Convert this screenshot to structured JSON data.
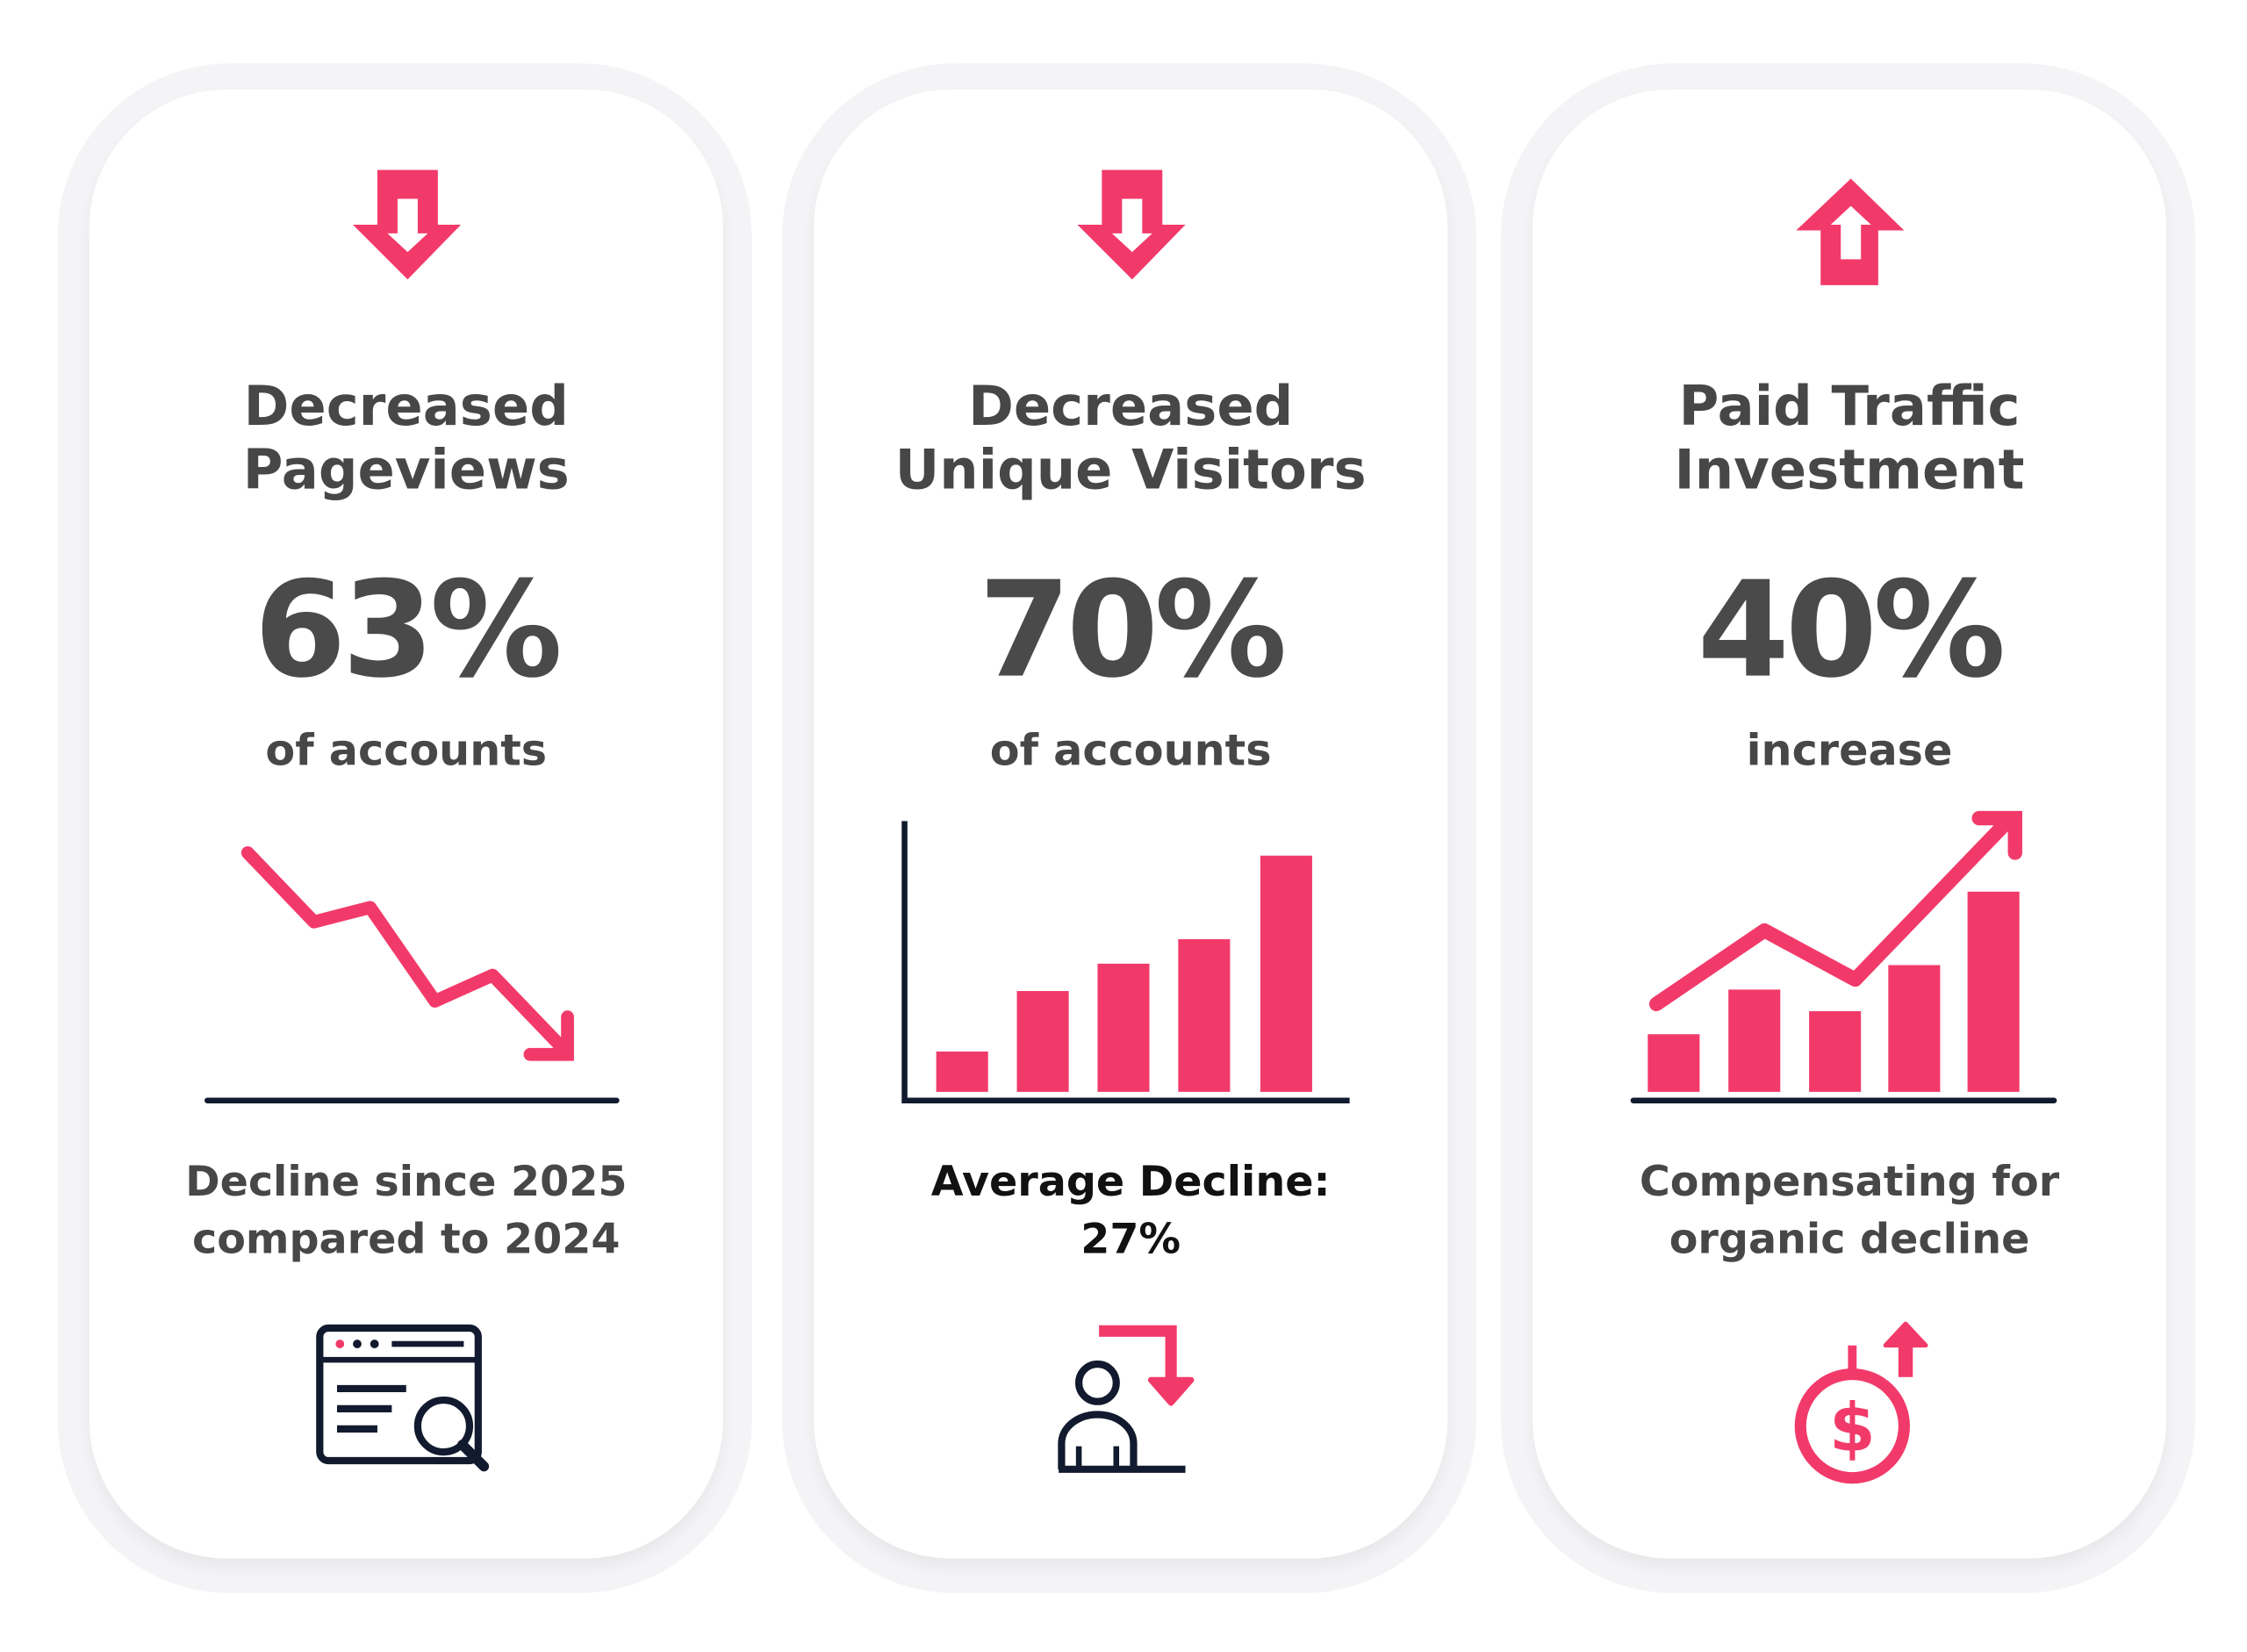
{
  "colors": {
    "accent": "#F23A6A",
    "text": "#474747",
    "axis": "#111a2e"
  },
  "cards": [
    {
      "arrow_icon": "arrow-down-icon",
      "title_line1": "Decreased",
      "title_line2": "Pageviews",
      "value": "63%",
      "value_caption": "of accounts",
      "chart_icon": "declining-line-chart-icon",
      "note_line1": "Decline since 2025",
      "note_line2": "compared to 2024",
      "bottom_icon": "browser-search-icon"
    },
    {
      "arrow_icon": "arrow-down-icon",
      "title_line1": "Decreased",
      "title_line2": "Unique Visitors",
      "value": "70%",
      "value_caption": "of accounts",
      "chart_icon": "bar-chart-icon",
      "note_line1": "Average Decline:",
      "note_line2": "27%",
      "bottom_icon": "user-decline-icon"
    },
    {
      "arrow_icon": "arrow-up-icon",
      "title_line1": "Paid Traffic",
      "title_line2": "Investment",
      "value": "40%",
      "value_caption": "increase",
      "chart_icon": "growth-chart-icon",
      "note_line1": "Compensating for",
      "note_line2": "organic decline",
      "bottom_icon": "money-increase-icon"
    }
  ]
}
